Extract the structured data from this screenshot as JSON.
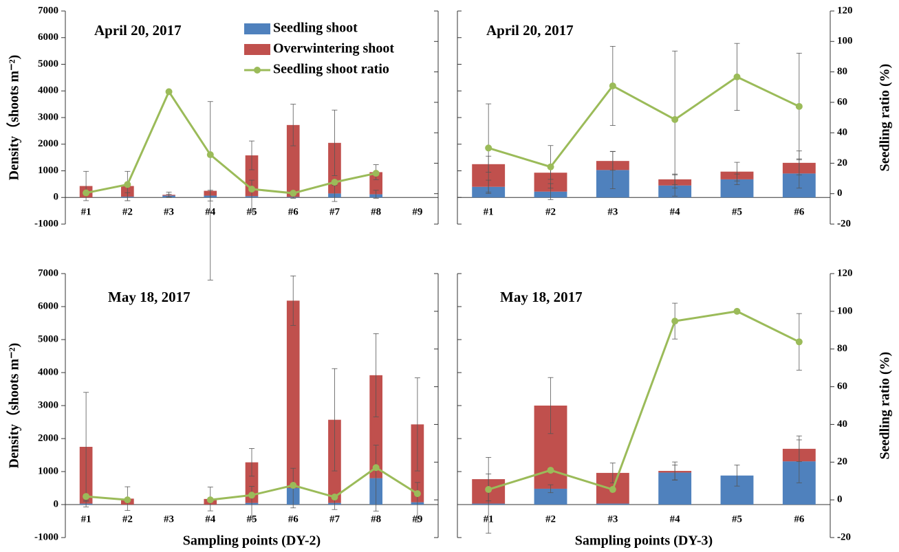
{
  "chart_data": [
    {
      "type": "bar-line",
      "title": "April 20, 2017",
      "categories": [
        "#1",
        "#2",
        "#3",
        "#4",
        "#5",
        "#6",
        "#7",
        "#8",
        "#9"
      ],
      "series": [
        {
          "name": "Seedling shoot",
          "color": "#4f81bd",
          "values": [
            0,
            30,
            70,
            70,
            50,
            20,
            150,
            120,
            0
          ],
          "errors": [
            0,
            150,
            50,
            200,
            600,
            50,
            300,
            150,
            0
          ]
        },
        {
          "name": "Overwintering shoot",
          "color": "#c0504d",
          "values": [
            430,
            400,
            30,
            180,
            1530,
            2700,
            1900,
            830,
            0
          ],
          "errors": [
            550,
            550,
            100,
            3350,
            540,
            780,
            1230,
            280,
            0
          ]
        },
        {
          "name": "Seedling shoot ratio",
          "color": "#9bbb59",
          "axis": "y2",
          "values": [
            0.5,
            6,
            67,
            25.6,
            3,
            0.3,
            7.5,
            13.4,
            null
          ]
        }
      ],
      "ylim": [
        -1000,
        7000
      ],
      "yticks": [
        -1000,
        0,
        1000,
        2000,
        3000,
        4000,
        5000,
        6000,
        7000
      ],
      "y2lim": [
        -20,
        120
      ],
      "y2ticks": [
        -20,
        0,
        20,
        40,
        60,
        80,
        100,
        120
      ],
      "ylabel": "Density（shoots m⁻²)",
      "legend": "upper center"
    },
    {
      "type": "bar-line",
      "title": "April 20, 2017",
      "categories": [
        "#1",
        "#2",
        "#3",
        "#4",
        "#5",
        "#6"
      ],
      "series": [
        {
          "name": "Seedling shoot",
          "color": "#4f81bd",
          "values": [
            400,
            220,
            1030,
            450,
            680,
            900
          ],
          "errors": [
            250,
            300,
            700,
            400,
            200,
            550
          ]
        },
        {
          "name": "Overwintering shoot",
          "color": "#c0504d",
          "values": [
            850,
            710,
            340,
            230,
            290,
            400
          ],
          "errors": [
            300,
            250,
            350,
            200,
            350,
            450
          ]
        },
        {
          "name": "Seedling shoot ratio",
          "color": "#9bbb59",
          "axis": "y2",
          "values": [
            30,
            17.6,
            70.8,
            48.7,
            76.7,
            57.3
          ],
          "errors": [
            29,
            14,
            26,
            45,
            22,
            35
          ]
        }
      ],
      "ylim": [
        -1000,
        7000
      ],
      "yticks": [
        -1000,
        0,
        1000,
        2000,
        3000,
        4000,
        5000,
        6000,
        7000
      ],
      "y2lim": [
        -20,
        120
      ],
      "y2ticks": [
        -20,
        0,
        20,
        40,
        60,
        80,
        100,
        120
      ],
      "y2label": "Seedling ratio (%)"
    },
    {
      "type": "bar-line",
      "title": "May 18, 2017",
      "categories": [
        "#1",
        "#2",
        "#3",
        "#4",
        "#5",
        "#6",
        "#7",
        "#8",
        "#9"
      ],
      "series": [
        {
          "name": "Seedling shoot",
          "color": "#4f81bd",
          "values": [
            30,
            0,
            0,
            0,
            50,
            500,
            50,
            800,
            70
          ],
          "errors": [
            100,
            0,
            0,
            0,
            500,
            600,
            200,
            1000,
            600
          ]
        },
        {
          "name": "Overwintering shoot",
          "color": "#c0504d",
          "values": [
            1720,
            180,
            0,
            170,
            1230,
            5680,
            2520,
            3120,
            2360
          ],
          "errors": [
            1650,
            360,
            0,
            360,
            420,
            750,
            1550,
            1260,
            1410
          ]
        },
        {
          "name": "Seedling shoot ratio",
          "color": "#9bbb59",
          "axis": "y2",
          "values": [
            1.8,
            0,
            null,
            0,
            2.5,
            7.7,
            1.5,
            17.1,
            3.3
          ]
        }
      ],
      "ylim": [
        -1000,
        7000
      ],
      "yticks": [
        -1000,
        0,
        1000,
        2000,
        3000,
        4000,
        5000,
        6000,
        7000
      ],
      "y2lim": [
        -20,
        120
      ],
      "y2ticks": [
        -20,
        0,
        20,
        40,
        60,
        80,
        100,
        120
      ],
      "ylabel": "Density（shoots m⁻²)",
      "xlabel": "Sampling points (DY-2)"
    },
    {
      "type": "bar-line",
      "title": "May 18, 2017",
      "categories": [
        "#1",
        "#2",
        "#3",
        "#4",
        "#5",
        "#6"
      ],
      "series": [
        {
          "name": "Seedling shoot",
          "color": "#4f81bd",
          "values": [
            30,
            480,
            30,
            970,
            880,
            1310
          ],
          "errors": [
            900,
            120,
            0,
            230,
            320,
            650
          ]
        },
        {
          "name": "Overwintering shoot",
          "color": "#c0504d",
          "values": [
            740,
            2520,
            930,
            50,
            0,
            380
          ],
          "errors": [
            660,
            850,
            300,
            270,
            0,
            390
          ]
        },
        {
          "name": "Seedling shoot ratio",
          "color": "#9bbb59",
          "axis": "y2",
          "values": [
            5.5,
            15.7,
            5.5,
            94.8,
            100,
            83.8
          ],
          "errors": [
            0,
            0,
            0,
            9.5,
            0,
            15
          ]
        }
      ],
      "ylim": [
        -1000,
        7000
      ],
      "yticks": [
        -1000,
        0,
        1000,
        2000,
        3000,
        4000,
        5000,
        6000,
        7000
      ],
      "y2lim": [
        -20,
        120
      ],
      "y2ticks": [
        -20,
        0,
        20,
        40,
        60,
        80,
        100,
        120
      ],
      "y2label": "Seedling ratio (%)",
      "xlabel": "Sampling points (DY-3)"
    }
  ]
}
